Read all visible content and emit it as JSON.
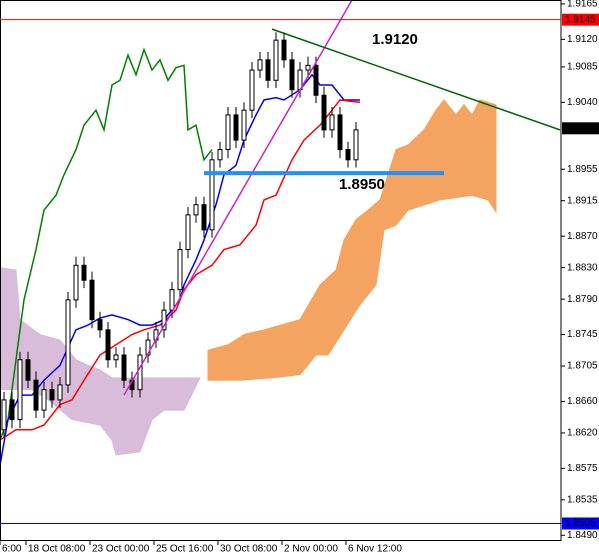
{
  "chart_data": {
    "type": "candlestick",
    "xlim": [
      0,
      140
    ],
    "ylim": [
      1.8484,
      1.917
    ],
    "yticks": [
      1.9165,
      {
        "value": 1.912,
        "label": "1.9120"
      },
      1.9085,
      {
        "value": 1.904,
        "label": "1.9040"
      },
      1.8955,
      1.8915,
      {
        "value": 1.887,
        "label": "1.8870"
      },
      {
        "value": 1.883,
        "label": "1.8830"
      },
      {
        "value": 1.879,
        "label": "1.8790"
      },
      1.8745,
      1.8705,
      {
        "value": 1.866,
        "label": "1.8660"
      },
      {
        "value": 1.862,
        "label": "1.8620"
      },
      1.8575,
      1.8535,
      {
        "value": 1.849,
        "label": "1.8490"
      }
    ],
    "xticks": [
      {
        "value": 0,
        "label": "6:00"
      },
      {
        "value": 6.5,
        "label": "18 Oct 08:00"
      },
      {
        "value": 22.5,
        "label": "23 Oct 00:00"
      },
      {
        "value": 38.5,
        "label": "25 Oct 16:00"
      },
      {
        "value": 54.5,
        "label": "30 Oct 08:00"
      },
      {
        "value": 70.5,
        "label": "2 Nov 00:00"
      },
      {
        "value": 86.5,
        "label": "6 Nov 12:00"
      }
    ],
    "clouds": [
      {
        "color": "#d9bcd9",
        "x_upper": [
          0,
          4,
          5,
          10,
          15,
          19,
          22,
          25,
          28,
          50
        ],
        "upper": [
          1.883,
          1.8827,
          1.8764,
          1.8745,
          1.8738,
          1.8713,
          1.8706,
          1.87,
          1.869,
          1.869
        ],
        "x_lower": [
          0,
          8,
          12,
          18,
          25,
          28,
          29,
          35,
          38,
          41,
          46,
          50
        ],
        "lower": [
          1.8675,
          1.8675,
          1.8662,
          1.8637,
          1.863,
          1.8611,
          1.8592,
          1.8596,
          1.8637,
          1.8649,
          1.8649,
          1.869
        ]
      },
      {
        "color": "#f4a460",
        "x_upper": [
          52,
          57,
          61,
          66,
          75,
          80,
          84,
          86,
          89,
          92,
          95,
          99,
          102,
          106,
          109,
          111,
          114,
          116,
          118,
          120,
          124
        ],
        "upper": [
          1.8725,
          1.8732,
          1.8745,
          1.8751,
          1.8764,
          1.8808,
          1.8827,
          1.8865,
          1.8891,
          1.8903,
          1.8916,
          1.898,
          1.8986,
          1.9005,
          1.903,
          1.9043,
          1.9024,
          1.9037,
          1.9024,
          1.9043,
          1.9037
        ],
        "x_lower": [
          52,
          60,
          68,
          75,
          79,
          82,
          86,
          90,
          94,
          96,
          99,
          102,
          110,
          118,
          122,
          124
        ],
        "lower": [
          1.8687,
          1.8687,
          1.869,
          1.8694,
          1.8719,
          1.8719,
          1.8751,
          1.8783,
          1.8808,
          1.8878,
          1.8884,
          1.8903,
          1.8916,
          1.8922,
          1.8916,
          1.8901
        ]
      }
    ],
    "series": [
      {
        "color": "#008000",
        "x": [
          0,
          2,
          4,
          6,
          9,
          11,
          14,
          16,
          19,
          21,
          24,
          26,
          28,
          30,
          32,
          34,
          36,
          38,
          40,
          42,
          44,
          46,
          47,
          49,
          51,
          53
        ],
        "values": [
          1.8611,
          1.8637,
          1.8713,
          1.8789,
          1.8853,
          1.8903,
          1.8922,
          1.8948,
          1.898,
          1.9011,
          1.903,
          1.9005,
          1.9062,
          1.9068,
          1.91,
          1.9075,
          1.9107,
          1.9081,
          1.9094,
          1.9068,
          1.9084,
          1.9087,
          1.9005,
          1.9011,
          1.8967,
          1.898
        ]
      },
      {
        "color": "#0000ff",
        "x": [
          0,
          2,
          5,
          8,
          11,
          15,
          19,
          22,
          25,
          28,
          32,
          35,
          38,
          41,
          45,
          46,
          49,
          51,
          54,
          56,
          59,
          61,
          64,
          66,
          69,
          71,
          75,
          78,
          80,
          83,
          86,
          90
        ],
        "values": [
          1.8579,
          1.8637,
          1.8668,
          1.8668,
          1.8687,
          1.8706,
          1.8751,
          1.8757,
          1.8766,
          1.877,
          1.8764,
          1.8757,
          1.8757,
          1.8764,
          1.8789,
          1.8808,
          1.884,
          1.8865,
          1.891,
          1.8948,
          1.896,
          1.8992,
          1.9024,
          1.9043,
          1.9046,
          1.9043,
          1.9056,
          1.9075,
          1.9062,
          1.9062,
          1.9043,
          1.9043
        ]
      },
      {
        "color": "#ff0000",
        "x": [
          0,
          4,
          8,
          11,
          15,
          18,
          21,
          25,
          29,
          33,
          36,
          40,
          44,
          46,
          49,
          53,
          56,
          60,
          64,
          66,
          69,
          73,
          76,
          80,
          83,
          85,
          90
        ],
        "values": [
          1.8611,
          1.8624,
          1.8624,
          1.863,
          1.8656,
          1.8662,
          1.8687,
          1.8719,
          1.8732,
          1.8745,
          1.8751,
          1.8757,
          1.8776,
          1.8802,
          1.8821,
          1.8833,
          1.8853,
          1.8859,
          1.8884,
          1.8916,
          1.8922,
          1.8967,
          1.8992,
          1.9011,
          1.903,
          1.9043,
          1.904
        ]
      }
    ],
    "candles": {
      "color": "#000000",
      "x": [
        1,
        3,
        5,
        7,
        9,
        11,
        13,
        15,
        17,
        19,
        21,
        23,
        25,
        27,
        29,
        31,
        33,
        35,
        37,
        39,
        41,
        43,
        45,
        47,
        49,
        51,
        53,
        55,
        57,
        59,
        61,
        63,
        65,
        67,
        69,
        71,
        73,
        75,
        77,
        79,
        81,
        83,
        85,
        87,
        89
      ],
      "open": [
        1.8624,
        1.8662,
        1.8637,
        1.8713,
        1.8687,
        1.8649,
        1.8675,
        1.8662,
        1.8681,
        1.8789,
        1.8833,
        1.8814,
        1.8764,
        1.8751,
        1.8713,
        1.8719,
        1.8687,
        1.8675,
        1.8719,
        1.8738,
        1.8751,
        1.8776,
        1.8802,
        1.8853,
        1.8897,
        1.891,
        1.8878,
        1.8967,
        1.898,
        1.9024,
        1.8992,
        1.903,
        1.9081,
        1.9094,
        1.9068,
        1.9119,
        1.9094,
        1.9056,
        1.9081,
        1.9087,
        1.9049,
        1.9005,
        1.9024,
        1.898,
        1.8967
      ],
      "high": [
        1.8672,
        1.8672,
        1.8723,
        1.8723,
        1.8698,
        1.8685,
        1.8685,
        1.8691,
        1.8799,
        1.8844,
        1.8844,
        1.8825,
        1.8774,
        1.8761,
        1.8729,
        1.8729,
        1.8698,
        1.8729,
        1.8748,
        1.8761,
        1.8787,
        1.8812,
        1.8863,
        1.8907,
        1.892,
        1.892,
        1.8977,
        1.899,
        1.9034,
        1.9034,
        1.904,
        1.9091,
        1.9104,
        1.9104,
        1.9129,
        1.9129,
        1.9104,
        1.9091,
        1.9098,
        1.9098,
        1.906,
        1.9034,
        1.9034,
        1.899,
        1.9015
      ],
      "low": [
        1.8614,
        1.8626,
        1.8626,
        1.8677,
        1.8639,
        1.8639,
        1.8652,
        1.8652,
        1.8671,
        1.8779,
        1.8804,
        1.8753,
        1.8741,
        1.8703,
        1.8703,
        1.8677,
        1.8665,
        1.8665,
        1.8709,
        1.8728,
        1.8741,
        1.8766,
        1.8792,
        1.8842,
        1.8887,
        1.8868,
        1.8868,
        1.8957,
        1.8969,
        1.8982,
        1.8982,
        1.902,
        1.9071,
        1.9058,
        1.9058,
        1.9084,
        1.9046,
        1.9046,
        1.9071,
        1.9039,
        1.8995,
        1.8995,
        1.8969,
        1.8957,
        1.8957
      ],
      "close": [
        1.8662,
        1.8637,
        1.8713,
        1.8687,
        1.8649,
        1.8675,
        1.8662,
        1.8681,
        1.8789,
        1.8833,
        1.8814,
        1.8764,
        1.8751,
        1.8713,
        1.8719,
        1.8687,
        1.8675,
        1.8719,
        1.8738,
        1.8751,
        1.8776,
        1.8802,
        1.8853,
        1.8897,
        1.891,
        1.8878,
        1.8967,
        1.898,
        1.9024,
        1.8992,
        1.903,
        1.9081,
        1.9094,
        1.9068,
        1.9119,
        1.9094,
        1.9056,
        1.9081,
        1.9087,
        1.9049,
        1.9005,
        1.9024,
        1.898,
        1.8967,
        1.9005
      ]
    },
    "trendlines": [
      {
        "color": "#cc22cc",
        "x": [
          31,
          88
        ],
        "values": [
          1.8668,
          1.917
        ]
      },
      {
        "color": "#006400",
        "x": [
          68,
          140
        ],
        "values": [
          1.9133,
          1.9005
        ],
        "label": "1.9120",
        "label_color": "#2e9e2e"
      }
    ],
    "level": {
      "color": "#1e90ff",
      "x": [
        51,
        111
      ],
      "value": 1.895,
      "label": "1.8950"
    },
    "hlines": [
      {
        "value": 1.9145,
        "color": "#ff0000"
      },
      {
        "value": 1.8505,
        "color": "#0000ff"
      }
    ],
    "last_price": {
      "value": 1.9007,
      "color": "#000000"
    }
  }
}
